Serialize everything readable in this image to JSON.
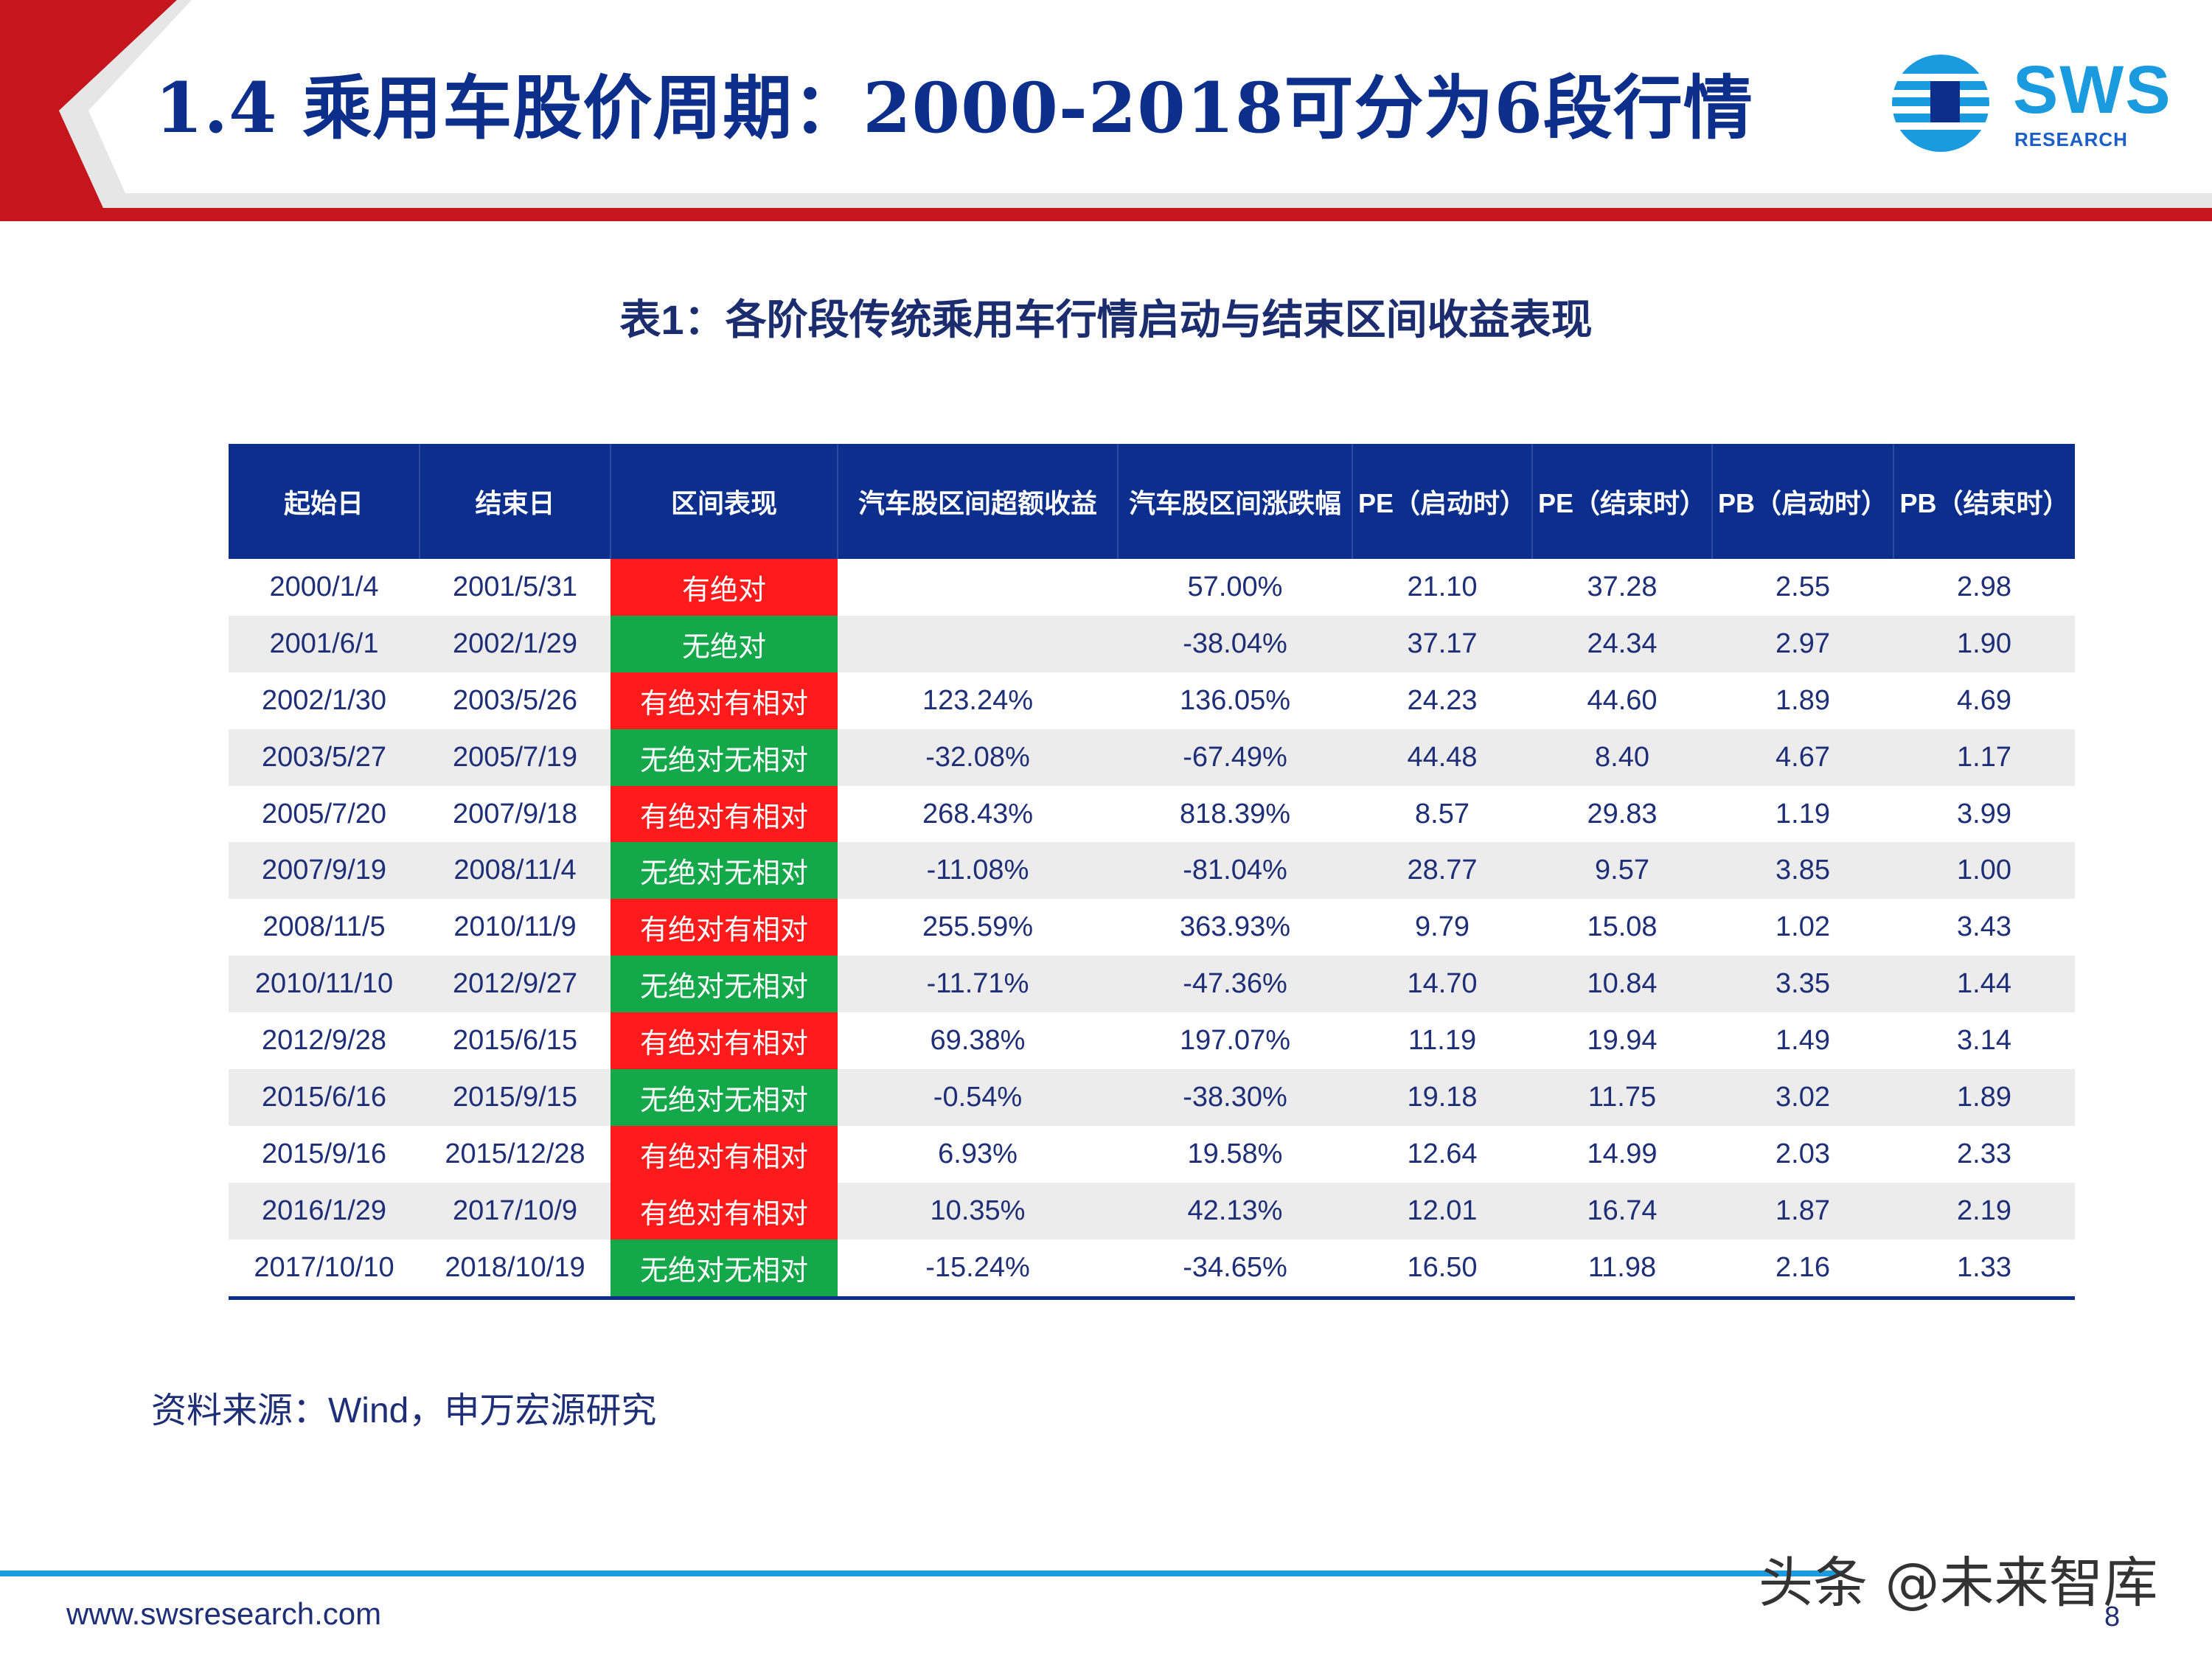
{
  "header": {
    "title": "1.4 乘用车股价周期：2000-2018可分为6段行情",
    "logo_text": "SWS",
    "logo_subtext": "RESEARCH"
  },
  "colors": {
    "brand_blue": "#0c2f8e",
    "accent_red": "#c4161c",
    "status_red": "#ff1b1b",
    "status_green": "#15a84b",
    "logo_blue": "#1a9be0"
  },
  "table": {
    "caption": "表1：各阶段传统乘用车行情启动与结束区间收益表现",
    "headers": [
      "起始日",
      "结束日",
      "区间表现",
      "汽车股区间超额收益",
      "汽车股区间涨跌幅",
      "PE（启动时）",
      "PE（结束时）",
      "PB（启动时）",
      "PB（结束时）"
    ],
    "rows": [
      {
        "start": "2000/1/4",
        "end": "2001/5/31",
        "status": "有绝对",
        "status_color": "red",
        "excess": "",
        "change": "57.00%",
        "pe_start": "21.10",
        "pe_end": "37.28",
        "pb_start": "2.55",
        "pb_end": "2.98"
      },
      {
        "start": "2001/6/1",
        "end": "2002/1/29",
        "status": "无绝对",
        "status_color": "green",
        "excess": "",
        "change": "-38.04%",
        "pe_start": "37.17",
        "pe_end": "24.34",
        "pb_start": "2.97",
        "pb_end": "1.90"
      },
      {
        "start": "2002/1/30",
        "end": "2003/5/26",
        "status": "有绝对有相对",
        "status_color": "red",
        "excess": "123.24%",
        "change": "136.05%",
        "pe_start": "24.23",
        "pe_end": "44.60",
        "pb_start": "1.89",
        "pb_end": "4.69"
      },
      {
        "start": "2003/5/27",
        "end": "2005/7/19",
        "status": "无绝对无相对",
        "status_color": "green",
        "excess": "-32.08%",
        "change": "-67.49%",
        "pe_start": "44.48",
        "pe_end": "8.40",
        "pb_start": "4.67",
        "pb_end": "1.17"
      },
      {
        "start": "2005/7/20",
        "end": "2007/9/18",
        "status": "有绝对有相对",
        "status_color": "red",
        "excess": "268.43%",
        "change": "818.39%",
        "pe_start": "8.57",
        "pe_end": "29.83",
        "pb_start": "1.19",
        "pb_end": "3.99"
      },
      {
        "start": "2007/9/19",
        "end": "2008/11/4",
        "status": "无绝对无相对",
        "status_color": "green",
        "excess": "-11.08%",
        "change": "-81.04%",
        "pe_start": "28.77",
        "pe_end": "9.57",
        "pb_start": "3.85",
        "pb_end": "1.00"
      },
      {
        "start": "2008/11/5",
        "end": "2010/11/9",
        "status": "有绝对有相对",
        "status_color": "red",
        "excess": "255.59%",
        "change": "363.93%",
        "pe_start": "9.79",
        "pe_end": "15.08",
        "pb_start": "1.02",
        "pb_end": "3.43"
      },
      {
        "start": "2010/11/10",
        "end": "2012/9/27",
        "status": "无绝对无相对",
        "status_color": "green",
        "excess": "-11.71%",
        "change": "-47.36%",
        "pe_start": "14.70",
        "pe_end": "10.84",
        "pb_start": "3.35",
        "pb_end": "1.44"
      },
      {
        "start": "2012/9/28",
        "end": "2015/6/15",
        "status": "有绝对有相对",
        "status_color": "red",
        "excess": "69.38%",
        "change": "197.07%",
        "pe_start": "11.19",
        "pe_end": "19.94",
        "pb_start": "1.49",
        "pb_end": "3.14"
      },
      {
        "start": "2015/6/16",
        "end": "2015/9/15",
        "status": "无绝对无相对",
        "status_color": "green",
        "excess": "-0.54%",
        "change": "-38.30%",
        "pe_start": "19.18",
        "pe_end": "11.75",
        "pb_start": "3.02",
        "pb_end": "1.89"
      },
      {
        "start": "2015/9/16",
        "end": "2015/12/28",
        "status": "有绝对有相对",
        "status_color": "red",
        "excess": "6.93%",
        "change": "19.58%",
        "pe_start": "12.64",
        "pe_end": "14.99",
        "pb_start": "2.03",
        "pb_end": "2.33"
      },
      {
        "start": "2016/1/29",
        "end": "2017/10/9",
        "status": "有绝对有相对",
        "status_color": "red",
        "excess": "10.35%",
        "change": "42.13%",
        "pe_start": "12.01",
        "pe_end": "16.74",
        "pb_start": "1.87",
        "pb_end": "2.19"
      },
      {
        "start": "2017/10/10",
        "end": "2018/10/19",
        "status": "无绝对无相对",
        "status_color": "green",
        "excess": "-15.24%",
        "change": "-34.65%",
        "pe_start": "16.50",
        "pe_end": "11.98",
        "pb_start": "2.16",
        "pb_end": "1.33"
      }
    ]
  },
  "source_note": "资料来源：Wind，申万宏源研究",
  "footer": {
    "url": "www.swsresearch.com",
    "watermark": "头条 @未来智库",
    "page_number": "8"
  }
}
